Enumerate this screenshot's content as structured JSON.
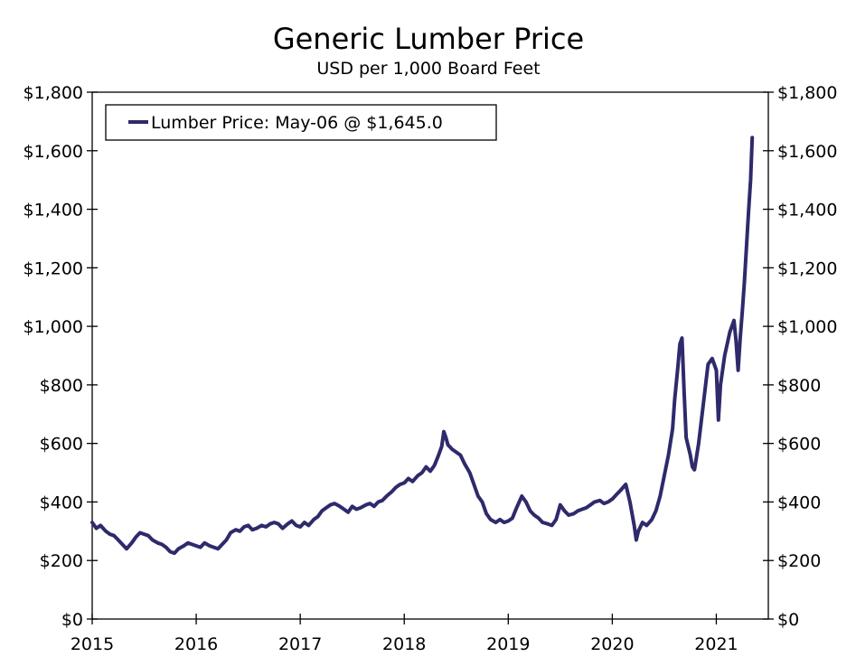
{
  "chart_data": {
    "type": "line",
    "title": "Generic Lumber Price",
    "subtitle": "USD per 1,000 Board Feet",
    "xlabel": "",
    "ylabel": "",
    "xlim": [
      2015.0,
      2021.5
    ],
    "ylim": [
      0,
      1800
    ],
    "y_ticks": [
      0,
      200,
      400,
      600,
      800,
      1000,
      1200,
      1400,
      1600,
      1800
    ],
    "y_tick_labels": [
      "$0",
      "$200",
      "$400",
      "$600",
      "$800",
      "$1,000",
      "$1,200",
      "$1,400",
      "$1,600",
      "$1,800"
    ],
    "x_ticks": [
      2015,
      2016,
      2017,
      2018,
      2019,
      2020,
      2021
    ],
    "x_tick_labels": [
      "2015",
      "2016",
      "2017",
      "2018",
      "2019",
      "2020",
      "2021"
    ],
    "grid": false,
    "legend": {
      "position": "top-left",
      "label": "Lumber Price: May-06 @ $1,645.0"
    },
    "series": [
      {
        "name": "Lumber Price",
        "color": "#2e2a6b",
        "points": [
          [
            2015.0,
            330
          ],
          [
            2015.04,
            310
          ],
          [
            2015.08,
            320
          ],
          [
            2015.13,
            300
          ],
          [
            2015.17,
            290
          ],
          [
            2015.21,
            285
          ],
          [
            2015.25,
            270
          ],
          [
            2015.29,
            255
          ],
          [
            2015.33,
            240
          ],
          [
            2015.38,
            260
          ],
          [
            2015.42,
            280
          ],
          [
            2015.46,
            295
          ],
          [
            2015.5,
            290
          ],
          [
            2015.54,
            285
          ],
          [
            2015.58,
            270
          ],
          [
            2015.63,
            260
          ],
          [
            2015.67,
            255
          ],
          [
            2015.71,
            245
          ],
          [
            2015.75,
            230
          ],
          [
            2015.79,
            225
          ],
          [
            2015.83,
            240
          ],
          [
            2015.88,
            250
          ],
          [
            2015.92,
            260
          ],
          [
            2015.96,
            255
          ],
          [
            2016.0,
            250
          ],
          [
            2016.04,
            245
          ],
          [
            2016.08,
            260
          ],
          [
            2016.13,
            250
          ],
          [
            2016.17,
            245
          ],
          [
            2016.21,
            240
          ],
          [
            2016.25,
            255
          ],
          [
            2016.29,
            270
          ],
          [
            2016.33,
            295
          ],
          [
            2016.38,
            305
          ],
          [
            2016.42,
            300
          ],
          [
            2016.46,
            315
          ],
          [
            2016.5,
            320
          ],
          [
            2016.54,
            305
          ],
          [
            2016.58,
            310
          ],
          [
            2016.63,
            320
          ],
          [
            2016.67,
            315
          ],
          [
            2016.71,
            325
          ],
          [
            2016.75,
            330
          ],
          [
            2016.79,
            325
          ],
          [
            2016.83,
            310
          ],
          [
            2016.88,
            325
          ],
          [
            2016.92,
            335
          ],
          [
            2016.96,
            320
          ],
          [
            2017.0,
            315
          ],
          [
            2017.04,
            330
          ],
          [
            2017.08,
            320
          ],
          [
            2017.13,
            340
          ],
          [
            2017.17,
            350
          ],
          [
            2017.21,
            370
          ],
          [
            2017.25,
            380
          ],
          [
            2017.29,
            390
          ],
          [
            2017.33,
            395
          ],
          [
            2017.38,
            385
          ],
          [
            2017.42,
            375
          ],
          [
            2017.46,
            365
          ],
          [
            2017.5,
            385
          ],
          [
            2017.54,
            375
          ],
          [
            2017.58,
            380
          ],
          [
            2017.63,
            390
          ],
          [
            2017.67,
            395
          ],
          [
            2017.71,
            385
          ],
          [
            2017.75,
            400
          ],
          [
            2017.79,
            405
          ],
          [
            2017.83,
            420
          ],
          [
            2017.88,
            435
          ],
          [
            2017.92,
            450
          ],
          [
            2017.96,
            460
          ],
          [
            2018.0,
            465
          ],
          [
            2018.04,
            480
          ],
          [
            2018.08,
            470
          ],
          [
            2018.13,
            490
          ],
          [
            2018.17,
            500
          ],
          [
            2018.21,
            520
          ],
          [
            2018.25,
            505
          ],
          [
            2018.29,
            525
          ],
          [
            2018.33,
            560
          ],
          [
            2018.36,
            590
          ],
          [
            2018.38,
            640
          ],
          [
            2018.4,
            620
          ],
          [
            2018.42,
            595
          ],
          [
            2018.46,
            580
          ],
          [
            2018.5,
            570
          ],
          [
            2018.54,
            560
          ],
          [
            2018.58,
            530
          ],
          [
            2018.63,
            500
          ],
          [
            2018.67,
            460
          ],
          [
            2018.71,
            420
          ],
          [
            2018.75,
            400
          ],
          [
            2018.79,
            360
          ],
          [
            2018.83,
            340
          ],
          [
            2018.88,
            330
          ],
          [
            2018.92,
            340
          ],
          [
            2018.96,
            330
          ],
          [
            2019.0,
            335
          ],
          [
            2019.04,
            345
          ],
          [
            2019.08,
            380
          ],
          [
            2019.13,
            420
          ],
          [
            2019.17,
            400
          ],
          [
            2019.21,
            370
          ],
          [
            2019.25,
            355
          ],
          [
            2019.29,
            345
          ],
          [
            2019.33,
            330
          ],
          [
            2019.38,
            325
          ],
          [
            2019.42,
            320
          ],
          [
            2019.46,
            340
          ],
          [
            2019.5,
            390
          ],
          [
            2019.54,
            370
          ],
          [
            2019.58,
            355
          ],
          [
            2019.63,
            360
          ],
          [
            2019.67,
            370
          ],
          [
            2019.71,
            375
          ],
          [
            2019.75,
            380
          ],
          [
            2019.79,
            390
          ],
          [
            2019.83,
            400
          ],
          [
            2019.88,
            405
          ],
          [
            2019.92,
            395
          ],
          [
            2019.96,
            400
          ],
          [
            2020.0,
            410
          ],
          [
            2020.04,
            425
          ],
          [
            2020.08,
            440
          ],
          [
            2020.13,
            460
          ],
          [
            2020.17,
            400
          ],
          [
            2020.21,
            320
          ],
          [
            2020.23,
            270
          ],
          [
            2020.25,
            300
          ],
          [
            2020.29,
            330
          ],
          [
            2020.33,
            320
          ],
          [
            2020.38,
            340
          ],
          [
            2020.42,
            370
          ],
          [
            2020.46,
            420
          ],
          [
            2020.5,
            490
          ],
          [
            2020.54,
            560
          ],
          [
            2020.58,
            650
          ],
          [
            2020.6,
            750
          ],
          [
            2020.63,
            860
          ],
          [
            2020.65,
            940
          ],
          [
            2020.67,
            960
          ],
          [
            2020.69,
            780
          ],
          [
            2020.71,
            620
          ],
          [
            2020.73,
            590
          ],
          [
            2020.75,
            560
          ],
          [
            2020.77,
            520
          ],
          [
            2020.79,
            510
          ],
          [
            2020.83,
            600
          ],
          [
            2020.88,
            750
          ],
          [
            2020.92,
            870
          ],
          [
            2020.96,
            890
          ],
          [
            2021.0,
            850
          ],
          [
            2021.02,
            680
          ],
          [
            2021.04,
            800
          ],
          [
            2021.08,
            900
          ],
          [
            2021.13,
            980
          ],
          [
            2021.17,
            1020
          ],
          [
            2021.19,
            950
          ],
          [
            2021.21,
            850
          ],
          [
            2021.23,
            960
          ],
          [
            2021.25,
            1050
          ],
          [
            2021.27,
            1150
          ],
          [
            2021.29,
            1270
          ],
          [
            2021.31,
            1390
          ],
          [
            2021.33,
            1500
          ],
          [
            2021.345,
            1645
          ]
        ]
      }
    ]
  }
}
